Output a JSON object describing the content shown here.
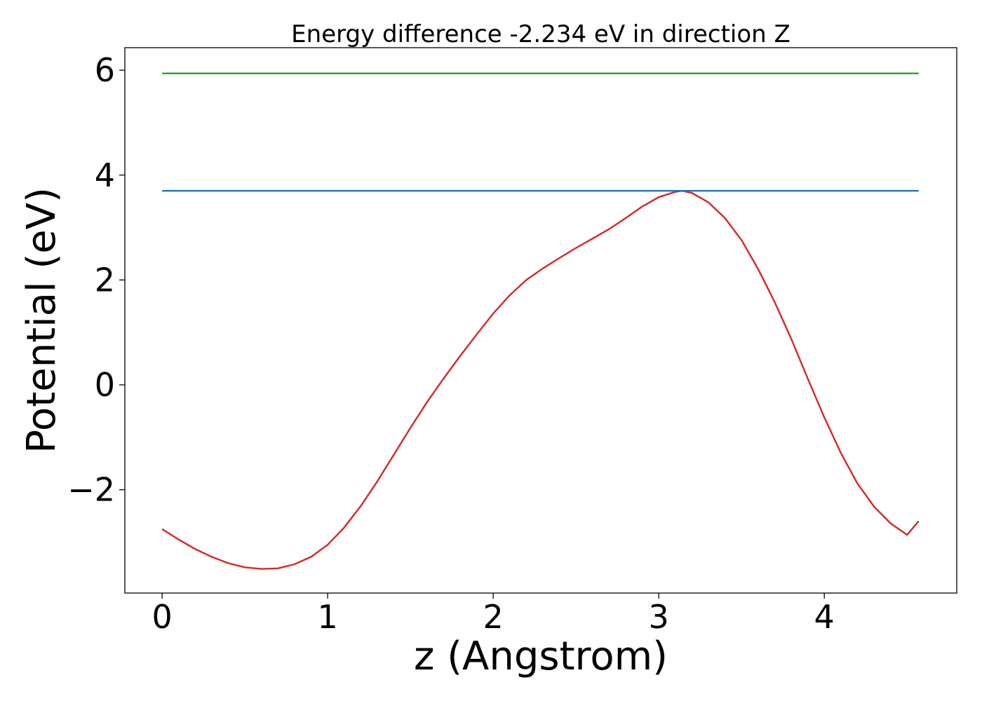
{
  "chart_data": {
    "type": "line",
    "title": "Energy difference -2.234 eV in direction Z",
    "xlabel": "z (Angstrom)",
    "ylabel": "Potential (eV)",
    "xlim": [
      -0.225,
      4.8
    ],
    "ylim": [
      -3.97,
      6.43
    ],
    "x_ticks": [
      0,
      1,
      2,
      3,
      4
    ],
    "x_tick_labels": [
      "0",
      "1",
      "2",
      "3",
      "4"
    ],
    "y_ticks": [
      -2,
      0,
      2,
      4,
      6
    ],
    "y_tick_labels": [
      "−2",
      "0",
      "2",
      "4",
      "6"
    ],
    "grid": false,
    "series": [
      {
        "color": "#d62728",
        "x": [
          0.0,
          0.1,
          0.2,
          0.3,
          0.4,
          0.5,
          0.6,
          0.7,
          0.8,
          0.9,
          1.0,
          1.1,
          1.2,
          1.3,
          1.4,
          1.5,
          1.6,
          1.7,
          1.8,
          1.9,
          2.0,
          2.1,
          2.2,
          2.3,
          2.4,
          2.5,
          2.6,
          2.7,
          2.8,
          2.9,
          3.0,
          3.1,
          3.14,
          3.2,
          3.3,
          3.4,
          3.5,
          3.6,
          3.7,
          3.8,
          3.9,
          4.0,
          4.1,
          4.2,
          4.3,
          4.4,
          4.5,
          4.57
        ],
        "y": [
          -2.75,
          -2.95,
          -3.13,
          -3.28,
          -3.4,
          -3.48,
          -3.51,
          -3.5,
          -3.42,
          -3.28,
          -3.05,
          -2.72,
          -2.31,
          -1.84,
          -1.33,
          -0.82,
          -0.33,
          0.12,
          0.55,
          0.96,
          1.36,
          1.71,
          2.0,
          2.22,
          2.42,
          2.61,
          2.79,
          2.97,
          3.18,
          3.4,
          3.58,
          3.68,
          3.7,
          3.66,
          3.48,
          3.18,
          2.76,
          2.21,
          1.58,
          0.88,
          0.12,
          -0.62,
          -1.3,
          -1.88,
          -2.32,
          -2.64,
          -2.86,
          -2.6
        ]
      },
      {
        "color": "#1f77b4",
        "x": [
          0.0,
          4.57
        ],
        "y": [
          3.7,
          3.7
        ]
      },
      {
        "color": "#2ca02c",
        "x": [
          0.0,
          4.57
        ],
        "y": [
          5.94,
          5.94
        ]
      }
    ]
  }
}
